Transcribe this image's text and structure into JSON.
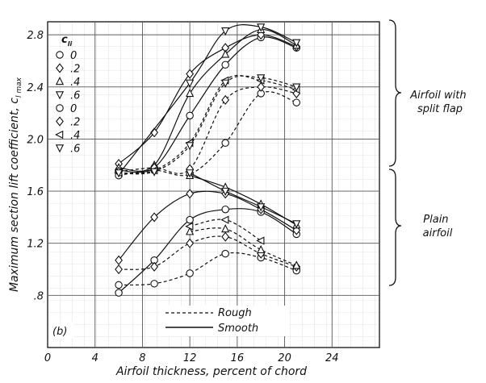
{
  "chart_data": {
    "type": "line",
    "xlabel": "Airfoil thickness, percent of chord",
    "ylabel": "Maximum section lift coefficient, c",
    "ylabel_subscript": "l max",
    "xlim": [
      0,
      28
    ],
    "ylim": [
      0.4,
      2.9
    ],
    "xticks": [
      "0",
      "4",
      "8",
      "12",
      "16",
      "20",
      "24"
    ],
    "yticks": [
      ".8",
      "1.2",
      "1.6",
      "2.0",
      "2.4",
      "2.8"
    ],
    "grid": true,
    "panel_label": "(b)",
    "cli_header": "c",
    "cli_header_subscript": "li",
    "cli_key": [
      {
        "marker": "circle",
        "label": "0"
      },
      {
        "marker": "diamond",
        "label": ".2"
      },
      {
        "marker": "triangle-up",
        "label": ".4"
      },
      {
        "marker": "triangle-down",
        "label": ".6"
      },
      {
        "marker": "circle",
        "label": "0"
      },
      {
        "marker": "diamond",
        "label": ".2"
      },
      {
        "marker": "triangle-left",
        "label": ".4"
      },
      {
        "marker": "triangle-down",
        "label": ".6"
      }
    ],
    "legend": {
      "placement": "bottom-center",
      "entries": [
        {
          "style": "dashed",
          "label": "Rough"
        },
        {
          "style": "solid",
          "label": "Smooth"
        }
      ]
    },
    "group_labels": [
      {
        "text": "Airfoil with split flap",
        "lines": [
          "Airfoil with",
          "split flap"
        ]
      },
      {
        "text": "Plain airfoil",
        "lines": [
          "Plain",
          "airfoil"
        ]
      }
    ],
    "series": [
      {
        "marker": "circle",
        "style": "solid",
        "group": "split-flap",
        "x": [
          6,
          9,
          12,
          15,
          18,
          21
        ],
        "y": [
          1.76,
          1.78,
          2.18,
          2.57,
          2.78,
          2.7
        ]
      },
      {
        "marker": "diamond",
        "style": "solid",
        "group": "split-flap",
        "x": [
          6,
          9,
          12,
          15,
          18,
          21
        ],
        "y": [
          1.81,
          2.05,
          2.5,
          2.7,
          2.8,
          2.71
        ]
      },
      {
        "marker": "triangle-up",
        "style": "solid",
        "group": "split-flap",
        "x": [
          6,
          9,
          12,
          15,
          18,
          21
        ],
        "y": [
          1.78,
          1.8,
          2.35,
          2.65,
          2.84,
          2.72
        ]
      },
      {
        "marker": "triangle-down",
        "style": "solid",
        "group": "split-flap",
        "x": [
          6,
          12,
          15,
          18,
          21
        ],
        "y": [
          1.73,
          2.43,
          2.83,
          2.86,
          2.74
        ]
      },
      {
        "marker": "circle",
        "style": "dashed",
        "group": "split-flap",
        "x": [
          6,
          9,
          12,
          15,
          18,
          21
        ],
        "y": [
          1.72,
          1.76,
          1.73,
          1.97,
          2.35,
          2.28
        ]
      },
      {
        "marker": "diamond",
        "style": "dashed",
        "group": "split-flap",
        "x": [
          6,
          9,
          12,
          15,
          18,
          21
        ],
        "y": [
          1.75,
          1.78,
          1.77,
          2.3,
          2.4,
          2.35
        ]
      },
      {
        "marker": "triangle-left",
        "style": "dashed",
        "group": "split-flap",
        "x": [
          6,
          9,
          12,
          15,
          18,
          21
        ],
        "y": [
          1.74,
          1.76,
          1.97,
          2.45,
          2.45,
          2.38
        ]
      },
      {
        "marker": "triangle-down",
        "style": "dashed",
        "group": "split-flap",
        "x": [
          6,
          9,
          12,
          15,
          18,
          21
        ],
        "y": [
          1.74,
          1.75,
          1.95,
          2.43,
          2.47,
          2.4
        ]
      },
      {
        "marker": "circle",
        "style": "solid",
        "group": "plain",
        "x": [
          6,
          9,
          12,
          15,
          18,
          21
        ],
        "y": [
          0.82,
          1.07,
          1.38,
          1.46,
          1.44,
          1.27
        ]
      },
      {
        "marker": "diamond",
        "style": "solid",
        "group": "plain",
        "x": [
          6,
          9,
          12,
          15,
          18,
          21
        ],
        "y": [
          1.07,
          1.4,
          1.58,
          1.58,
          1.46,
          1.3
        ]
      },
      {
        "marker": "triangle-up",
        "style": "solid",
        "group": "plain",
        "x": [
          12,
          15,
          18,
          21
        ],
        "y": [
          1.72,
          1.63,
          1.5,
          1.34
        ]
      },
      {
        "marker": "triangle-down",
        "style": "solid",
        "group": "plain",
        "x": [
          12,
          15,
          18,
          21
        ],
        "y": [
          1.74,
          1.6,
          1.48,
          1.35
        ]
      },
      {
        "marker": "circle",
        "style": "dashed",
        "group": "plain",
        "x": [
          6,
          9,
          12,
          15,
          18,
          21
        ],
        "y": [
          0.88,
          0.89,
          0.97,
          1.12,
          1.09,
          0.99
        ]
      },
      {
        "marker": "diamond",
        "style": "dashed",
        "group": "plain",
        "x": [
          6,
          9,
          12,
          15,
          18,
          21
        ],
        "y": [
          1.0,
          1.02,
          1.2,
          1.25,
          1.12,
          1.02
        ]
      },
      {
        "marker": "triangle-up",
        "style": "dashed",
        "group": "plain",
        "x": [
          12,
          15,
          18,
          21
        ],
        "y": [
          1.29,
          1.31,
          1.15,
          1.03
        ]
      },
      {
        "marker": "triangle-left",
        "style": "dashed",
        "group": "plain",
        "x": [
          12,
          15,
          18
        ],
        "y": [
          1.33,
          1.38,
          1.22
        ]
      }
    ]
  }
}
